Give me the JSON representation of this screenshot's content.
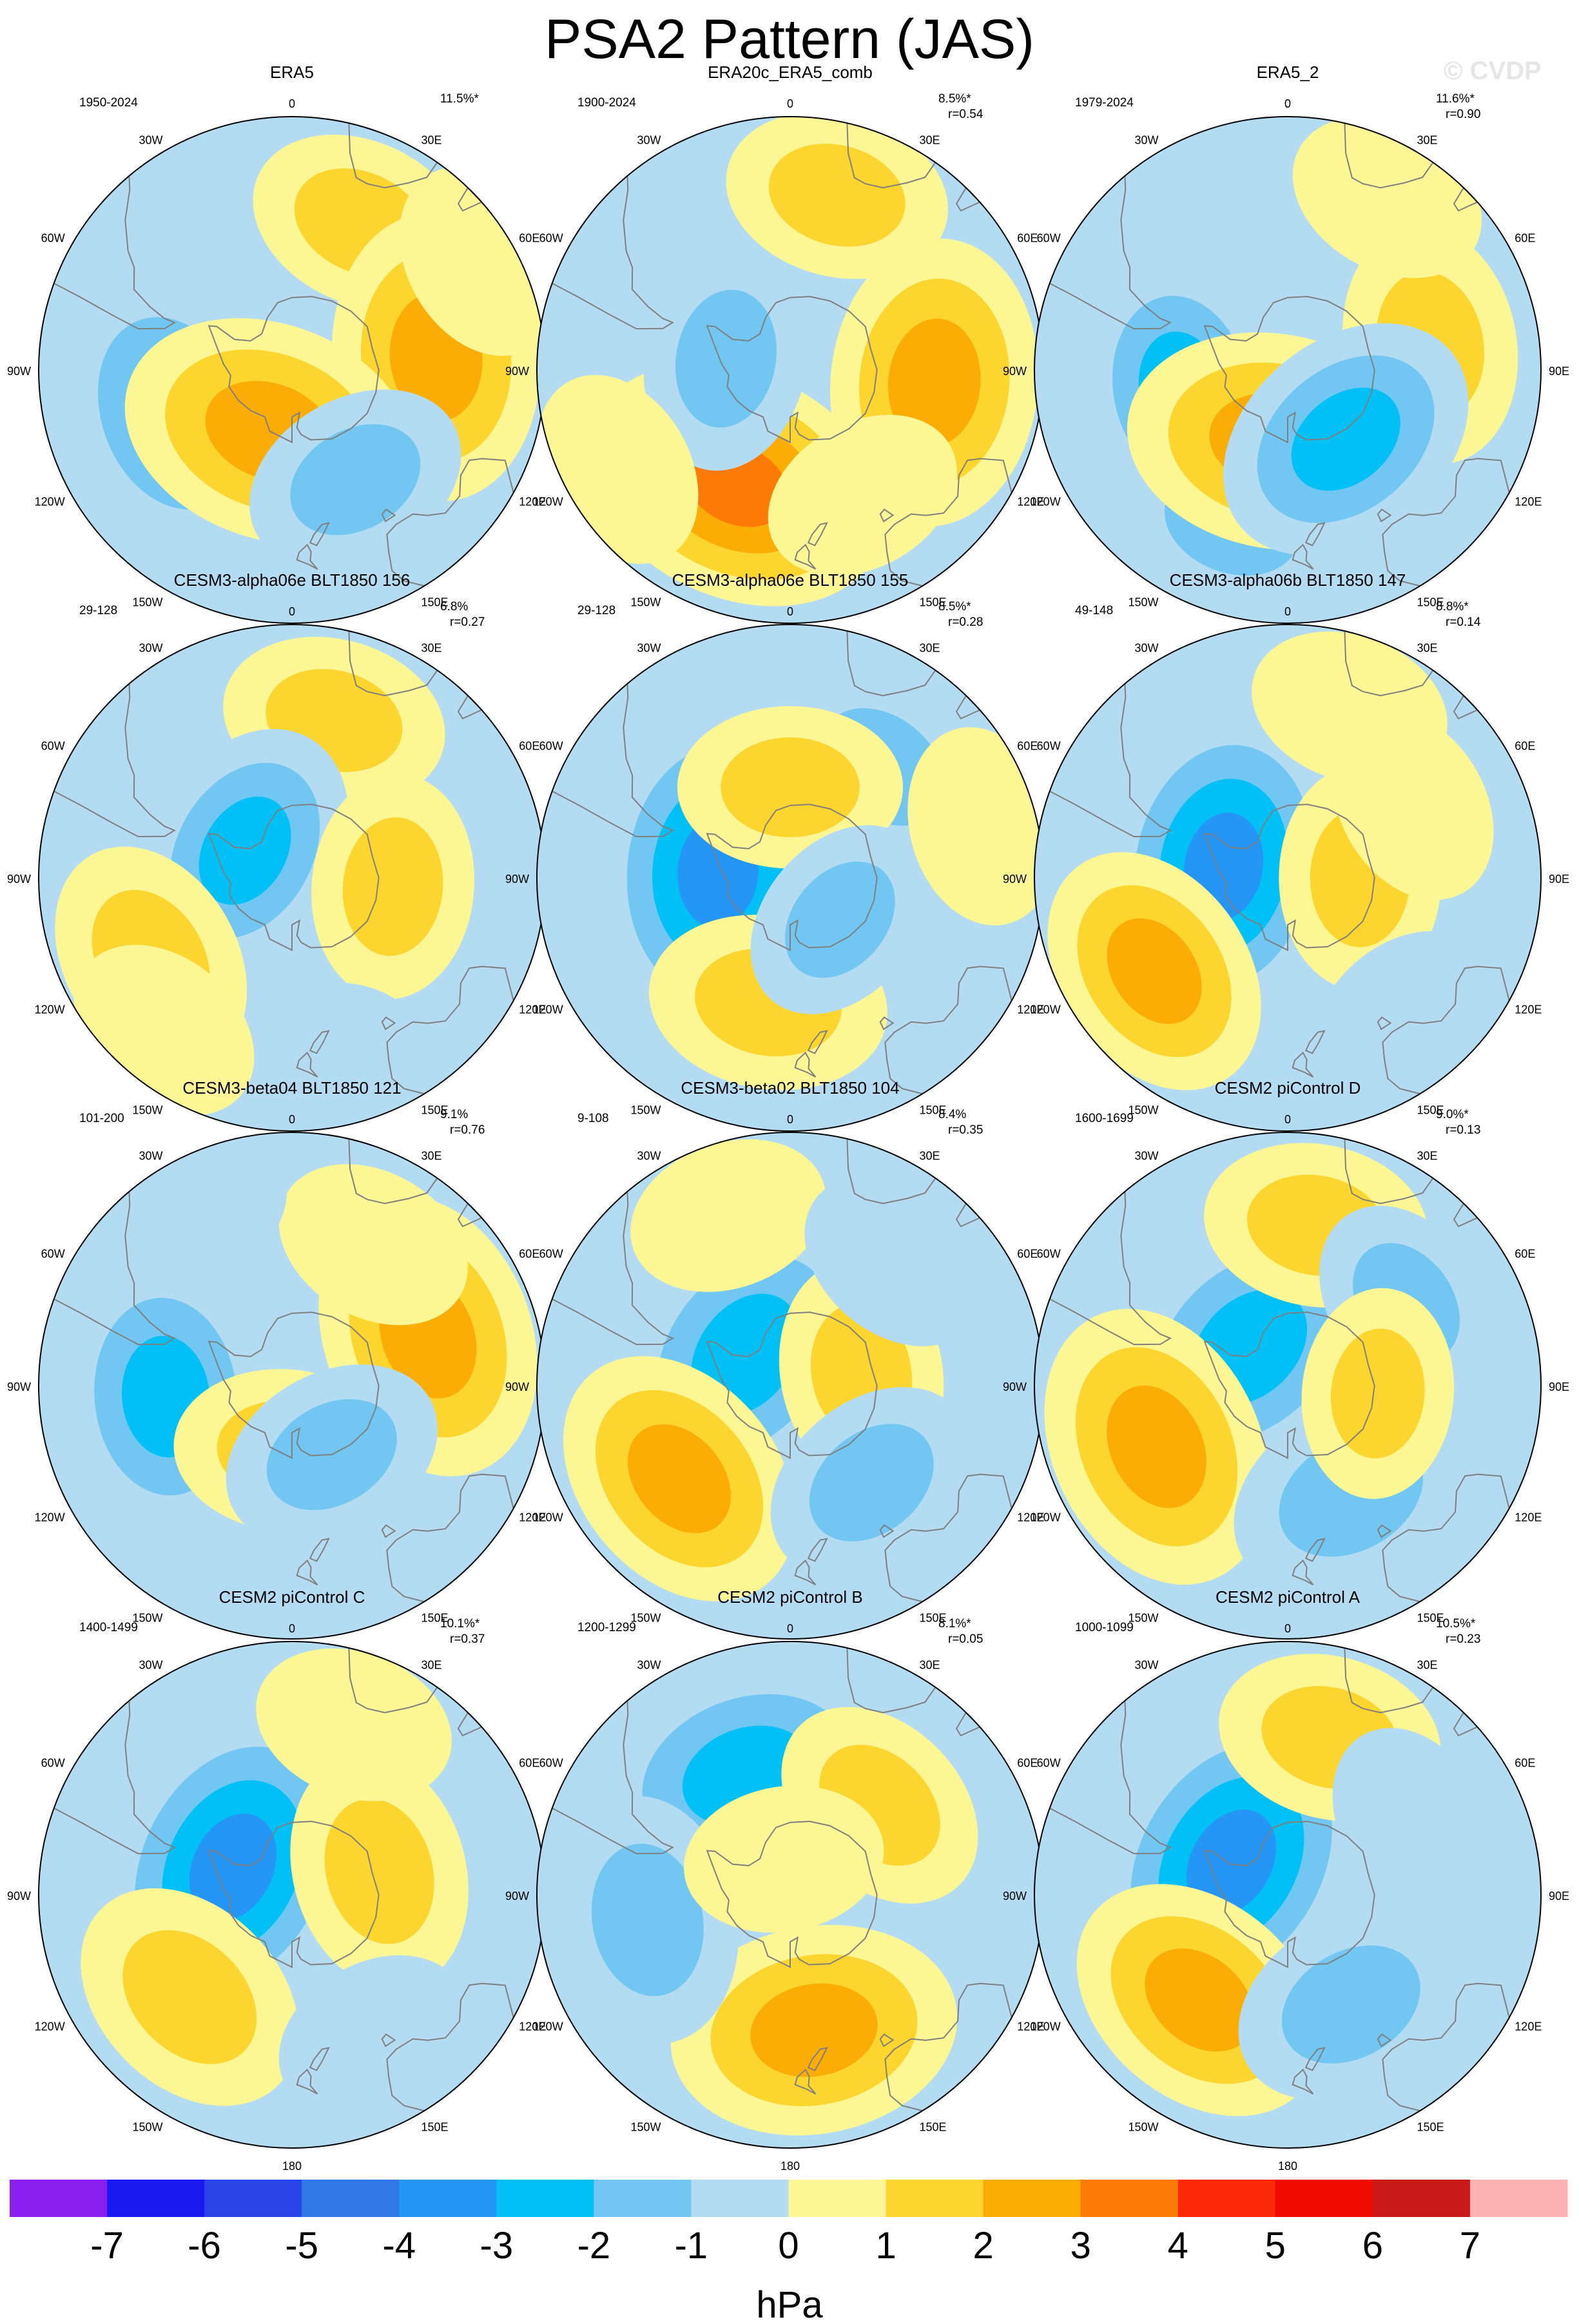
{
  "figure": {
    "title": "PSA2 Pattern (JAS)",
    "watermark": "© CVDP"
  },
  "map_labels": {
    "lon_top": "0",
    "lon_30w": "30W",
    "lon_30e": "30E",
    "lon_60w": "60W",
    "lon_60e": "60E",
    "lon_90w": "90W",
    "lon_90e": "90E",
    "lon_120w": "120W",
    "lon_120e": "120E",
    "lon_150w": "150W",
    "lon_150e": "150E",
    "lon_bottom": "180"
  },
  "colors": {
    "ocean_background": "#b3dcf2",
    "coastline": "#7f7f7f",
    "outline": "#000000",
    "fill_zero_to_one": "#fdf694"
  },
  "panels": [
    {
      "title": "ERA5",
      "years": "1950-2024",
      "pct": "11.5%*",
      "corr": "",
      "anomalies": [
        {
          "lat": -45,
          "lon": 25,
          "v": 1.5
        },
        {
          "lat": -50,
          "lon": 85,
          "v": 2.8
        },
        {
          "lat": -55,
          "lon": -110,
          "v": -2.5
        },
        {
          "lat": -72,
          "lon": -160,
          "v": 3.0
        },
        {
          "lat": -55,
          "lon": 150,
          "v": -1.5
        },
        {
          "lat": -30,
          "lon": 60,
          "v": 1.0
        }
      ]
    },
    {
      "title": "ERA20c_ERA5_comb",
      "years": "1900-2024",
      "pct": "8.5%*",
      "corr": "r=0.54",
      "anomalies": [
        {
          "lat": -40,
          "lon": 15,
          "v": 1.5
        },
        {
          "lat": -50,
          "lon": 95,
          "v": 2.8
        },
        {
          "lat": -55,
          "lon": -155,
          "v": 3.3
        },
        {
          "lat": -72,
          "lon": -80,
          "v": -1.5
        },
        {
          "lat": -35,
          "lon": -120,
          "v": 1.0
        },
        {
          "lat": -50,
          "lon": 150,
          "v": 1.0
        }
      ]
    },
    {
      "title": "ERA5_2",
      "years": "1979-2024",
      "pct": "11.6%*",
      "corr": "r=0.90",
      "anomalies": [
        {
          "lat": -50,
          "lon": 80,
          "v": 1.8
        },
        {
          "lat": -60,
          "lon": -100,
          "v": -2.2
        },
        {
          "lat": -45,
          "lon": -160,
          "v": -1.5
        },
        {
          "lat": -70,
          "lon": -170,
          "v": 3.0
        },
        {
          "lat": -65,
          "lon": 140,
          "v": -2.5
        },
        {
          "lat": -35,
          "lon": 30,
          "v": 1.0
        }
      ]
    },
    {
      "title": "CESM3-alpha06e BLT1850 156",
      "years": "29-128",
      "pct": "6.8%",
      "corr": "r=0.27",
      "anomalies": [
        {
          "lat": -45,
          "lon": 15,
          "v": 1.5
        },
        {
          "lat": -75,
          "lon": -60,
          "v": -2.2
        },
        {
          "lat": -45,
          "lon": -120,
          "v": 1.8
        },
        {
          "lat": -62,
          "lon": 95,
          "v": 1.5
        },
        {
          "lat": -40,
          "lon": 170,
          "v": -1.0
        },
        {
          "lat": -35,
          "lon": -140,
          "v": 1.0
        }
      ]
    },
    {
      "title": "CESM3-alpha06e BLT1850 155",
      "years": "29-128",
      "pct": "8.5%*",
      "corr": "r=0.28",
      "anomalies": [
        {
          "lat": -50,
          "lon": 40,
          "v": -1.5
        },
        {
          "lat": -70,
          "lon": -85,
          "v": -3.5
        },
        {
          "lat": -65,
          "lon": 0,
          "v": 1.5
        },
        {
          "lat": -55,
          "lon": -170,
          "v": 1.8
        },
        {
          "lat": -72,
          "lon": 130,
          "v": -1.2
        },
        {
          "lat": -35,
          "lon": 75,
          "v": 1.0
        }
      ]
    },
    {
      "title": "CESM3-alpha06b BLT1850 147",
      "years": "49-148",
      "pct": "8.8%*",
      "corr": "r=0.14",
      "anomalies": [
        {
          "lat": -72,
          "lon": -80,
          "v": -3.3
        },
        {
          "lat": -45,
          "lon": -125,
          "v": 2.2
        },
        {
          "lat": -70,
          "lon": 90,
          "v": 1.5
        },
        {
          "lat": -40,
          "lon": 20,
          "v": 1.0
        },
        {
          "lat": -40,
          "lon": 140,
          "v": -1.0
        },
        {
          "lat": -50,
          "lon": 60,
          "v": 1.0
        }
      ]
    },
    {
      "title": "CESM3-beta04 BLT1850 121",
      "years": "101-200",
      "pct": "9.1%",
      "corr": "r=0.76",
      "anomalies": [
        {
          "lat": -50,
          "lon": 70,
          "v": 2.8
        },
        {
          "lat": -55,
          "lon": -95,
          "v": -2.5
        },
        {
          "lat": -72,
          "lon": -175,
          "v": 1.5
        },
        {
          "lat": -68,
          "lon": 150,
          "v": -1.5
        },
        {
          "lat": -45,
          "lon": 30,
          "v": 1.0
        },
        {
          "lat": -35,
          "lon": -30,
          "v": -1.0
        }
      ]
    },
    {
      "title": "CESM3-beta02 BLT1850 104",
      "years": "9-108",
      "pct": "8.4%",
      "corr": "r=0.35",
      "anomalies": [
        {
          "lat": -75,
          "lon": -55,
          "v": -3.0
        },
        {
          "lat": -50,
          "lon": -130,
          "v": 2.5
        },
        {
          "lat": -70,
          "lon": 80,
          "v": 1.5
        },
        {
          "lat": -55,
          "lon": 140,
          "v": -1.5
        },
        {
          "lat": -40,
          "lon": -20,
          "v": 1.0
        },
        {
          "lat": -45,
          "lon": 40,
          "v": -1.0
        }
      ]
    },
    {
      "title": "CESM2 piControl D",
      "years": "1600-1699",
      "pct": "9.0%*",
      "corr": "r=0.13",
      "anomalies": [
        {
          "lat": -75,
          "lon": -45,
          "v": -3.0
        },
        {
          "lat": -50,
          "lon": -115,
          "v": 2.8
        },
        {
          "lat": -45,
          "lon": 10,
          "v": 1.5
        },
        {
          "lat": -55,
          "lon": 150,
          "v": -2.0
        },
        {
          "lat": -50,
          "lon": 55,
          "v": -1.2
        },
        {
          "lat": -65,
          "lon": 95,
          "v": 1.2
        }
      ]
    },
    {
      "title": "CESM2 piControl C",
      "years": "1400-1499",
      "pct": "10.1%*",
      "corr": "r=0.37",
      "anomalies": [
        {
          "lat": -72,
          "lon": -65,
          "v": -3.5
        },
        {
          "lat": -50,
          "lon": -135,
          "v": 2.0
        },
        {
          "lat": -65,
          "lon": 75,
          "v": 1.8
        },
        {
          "lat": -40,
          "lon": 20,
          "v": 1.0
        },
        {
          "lat": -45,
          "lon": 150,
          "v": -1.0
        }
      ]
    },
    {
      "title": "CESM2 piControl B",
      "years": "1200-1299",
      "pct": "8.1%*",
      "corr": "r=0.05",
      "anomalies": [
        {
          "lat": -55,
          "lon": -20,
          "v": -3.0
        },
        {
          "lat": -52,
          "lon": 170,
          "v": 2.8
        },
        {
          "lat": -55,
          "lon": 45,
          "v": 1.5
        },
        {
          "lat": -50,
          "lon": -100,
          "v": -2.0
        },
        {
          "lat": -80,
          "lon": -10,
          "v": 1.0
        }
      ]
    },
    {
      "title": "CESM2 piControl A",
      "years": "1000-1099",
      "pct": "10.5%*",
      "corr": "r=0.23",
      "anomalies": [
        {
          "lat": -72,
          "lon": -60,
          "v": -3.5
        },
        {
          "lat": -52,
          "lon": -140,
          "v": 2.5
        },
        {
          "lat": -55,
          "lon": 150,
          "v": -1.8
        },
        {
          "lat": -45,
          "lon": 15,
          "v": 1.5
        },
        {
          "lat": -50,
          "lon": 60,
          "v": -1.0
        }
      ]
    }
  ],
  "colorbar": {
    "unit": "hPa",
    "levels": [
      "-7",
      "-6",
      "-5",
      "-4",
      "-3",
      "-2",
      "-1",
      "0",
      "1",
      "2",
      "3",
      "4",
      "5",
      "6",
      "7"
    ],
    "colors": [
      "#8b1ff0",
      "#1a19f0",
      "#2b46e6",
      "#3278e6",
      "#2596f5",
      "#00c0f5",
      "#72c6f2",
      "#b3dcf2",
      "#fdf694",
      "#fcd52e",
      "#fcad05",
      "#fc7a05",
      "#fc2a08",
      "#ee0a00",
      "#c81818",
      "#fcb2b2"
    ]
  }
}
